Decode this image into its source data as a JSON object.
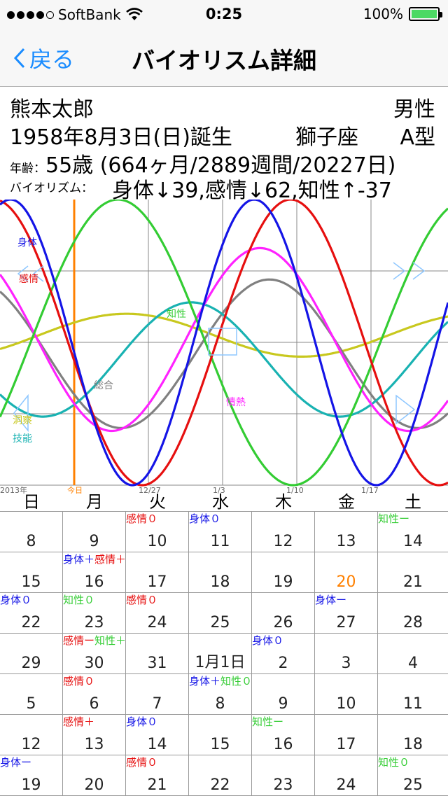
{
  "status_bar": {
    "carrier": "SoftBank",
    "time": "0:25",
    "battery": "100%"
  },
  "nav": {
    "back_label": "戻る",
    "title": "バイオリスム詳細"
  },
  "info": {
    "name": "熊本太郎",
    "gender": "男性",
    "birth": "1958年8月3日(日)誕生",
    "zodiac": "獅子座",
    "blood": "A型",
    "age_label": "年齢：",
    "age_value": "55歳 (664ヶ月/2889週間/20227日)",
    "bio_label": "バイオリズム：",
    "bio_value": "身体↓39,感情↓62,知性↑-37"
  },
  "chart_data": {
    "type": "line",
    "title": "",
    "x_tick_labels": [
      "2013年",
      "今日",
      "12/27",
      "1/3",
      "1/10",
      "1/17"
    ],
    "curve_labels": [
      "身体",
      "感情",
      "知性",
      "総合",
      "情熱",
      "洞察",
      "技能"
    ],
    "series": [
      {
        "name": "身体",
        "period": 23,
        "color": "#1414e6"
      },
      {
        "name": "感情",
        "period": 28,
        "color": "#e60f0f"
      },
      {
        "name": "知性",
        "period": 33,
        "color": "#33cc33"
      },
      {
        "name": "総合",
        "color": "#808080"
      },
      {
        "name": "情熱",
        "color": "#ff22ff"
      },
      {
        "name": "洞察",
        "color": "#c8c81e"
      },
      {
        "name": "技能",
        "color": "#19b2b2"
      }
    ],
    "today_line_color": "#ff8000",
    "ylim": [
      -100,
      100
    ],
    "grid": true
  },
  "weekdays": [
    "日",
    "月",
    "火",
    "水",
    "木",
    "金",
    "土"
  ],
  "colors": {
    "physical": "#1414e6",
    "emotional": "#e60f0f",
    "intellectual": "#33cc33",
    "today": "#ff8000",
    "nav_blue": "#1a8cff"
  },
  "calendar": {
    "weeks": [
      [
        {
          "d": "8"
        },
        {
          "d": "9"
        },
        {
          "d": "10",
          "ev": [
            {
              "t": "感情０",
              "c": "e"
            }
          ]
        },
        {
          "d": "11",
          "ev": [
            {
              "t": "身体０",
              "c": "p"
            }
          ]
        },
        {
          "d": "12"
        },
        {
          "d": "13"
        },
        {
          "d": "14",
          "ev": [
            {
              "t": "知性ー",
              "c": "i"
            }
          ]
        }
      ],
      [
        {
          "d": "15"
        },
        {
          "d": "16",
          "ev": [
            {
              "t": "身体＋",
              "c": "p"
            },
            {
              "t": "感情＋",
              "c": "e"
            }
          ]
        },
        {
          "d": "17"
        },
        {
          "d": "18"
        },
        {
          "d": "19"
        },
        {
          "d": "20",
          "today": true
        },
        {
          "d": "21"
        }
      ],
      [
        {
          "d": "22",
          "ev": [
            {
              "t": "身体０",
              "c": "p"
            }
          ]
        },
        {
          "d": "23",
          "ev": [
            {
              "t": "知性０",
              "c": "i"
            }
          ]
        },
        {
          "d": "24",
          "ev": [
            {
              "t": "感情０",
              "c": "e"
            }
          ]
        },
        {
          "d": "25"
        },
        {
          "d": "26"
        },
        {
          "d": "27",
          "ev": [
            {
              "t": "身体ー",
              "c": "p"
            }
          ]
        },
        {
          "d": "28"
        }
      ],
      [
        {
          "d": "29"
        },
        {
          "d": "30",
          "ev": [
            {
              "t": "感情ー",
              "c": "e"
            },
            {
              "t": "知性＋",
              "c": "i"
            }
          ]
        },
        {
          "d": "31"
        },
        {
          "d": "1月1日"
        },
        {
          "d": "2",
          "ev": [
            {
              "t": "身体０",
              "c": "p"
            }
          ]
        },
        {
          "d": "3"
        },
        {
          "d": "4"
        }
      ],
      [
        {
          "d": "5"
        },
        {
          "d": "6",
          "ev": [
            {
              "t": "感情０",
              "c": "e"
            }
          ]
        },
        {
          "d": "7"
        },
        {
          "d": "8",
          "ev": [
            {
              "t": "身体＋",
              "c": "p"
            },
            {
              "t": "知性０",
              "c": "i"
            }
          ]
        },
        {
          "d": "9"
        },
        {
          "d": "10"
        },
        {
          "d": "11"
        }
      ],
      [
        {
          "d": "12"
        },
        {
          "d": "13",
          "ev": [
            {
              "t": "感情＋",
              "c": "e"
            }
          ]
        },
        {
          "d": "14",
          "ev": [
            {
              "t": "身体０",
              "c": "p"
            }
          ]
        },
        {
          "d": "15"
        },
        {
          "d": "16",
          "ev": [
            {
              "t": "知性ー",
              "c": "i"
            }
          ]
        },
        {
          "d": "17"
        },
        {
          "d": "18"
        }
      ],
      [
        {
          "d": "19",
          "ev": [
            {
              "t": "身体ー",
              "c": "p"
            }
          ]
        },
        {
          "d": "20"
        },
        {
          "d": "21",
          "ev": [
            {
              "t": "感情０",
              "c": "e"
            }
          ]
        },
        {
          "d": "22"
        },
        {
          "d": "23"
        },
        {
          "d": "24"
        },
        {
          "d": "25",
          "ev": [
            {
              "t": "知性０",
              "c": "i"
            }
          ]
        }
      ]
    ]
  }
}
